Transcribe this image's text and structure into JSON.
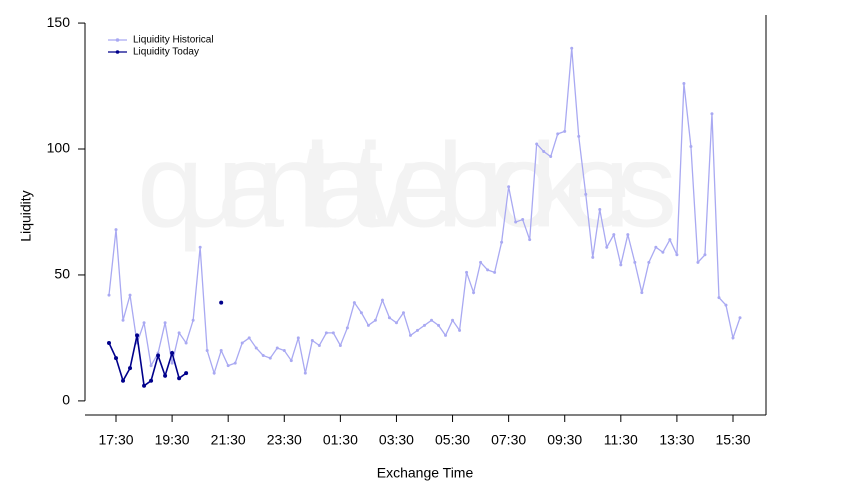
{
  "chart_data": {
    "type": "line",
    "watermark": "quantitative brokers",
    "xlabel": "Exchange Time",
    "ylabel": "Liquidity",
    "categories": [
      null,
      "17:30",
      null,
      null,
      null,
      null,
      null,
      null,
      null,
      "19:30",
      null,
      null,
      null,
      null,
      null,
      null,
      null,
      "21:30",
      null,
      null,
      null,
      null,
      null,
      null,
      null,
      "23:30",
      null,
      null,
      null,
      null,
      null,
      null,
      null,
      "01:30",
      null,
      null,
      null,
      null,
      null,
      null,
      null,
      "03:30",
      null,
      null,
      null,
      null,
      null,
      null,
      null,
      "05:30",
      null,
      null,
      null,
      null,
      null,
      null,
      null,
      "07:30",
      null,
      null,
      null,
      null,
      null,
      null,
      null,
      "09:30",
      null,
      null,
      null,
      null,
      null,
      null,
      null,
      "11:30",
      null,
      null,
      null,
      null,
      null,
      null,
      null,
      "13:30",
      null,
      null,
      null,
      null,
      null,
      null,
      null,
      "15:30",
      null
    ],
    "series": [
      {
        "name": "Liquidity Historical",
        "color": "#a9a9f2",
        "values": [
          42,
          68,
          32,
          42,
          23,
          31,
          14,
          19,
          31,
          15,
          27,
          23,
          32,
          61,
          20,
          11,
          20,
          14,
          15,
          23,
          25,
          21,
          18,
          17,
          21,
          20,
          16,
          25,
          11,
          24,
          22,
          27,
          27,
          22,
          29,
          39,
          35,
          30,
          32,
          40,
          33,
          31,
          35,
          26,
          28,
          30,
          32,
          30,
          26,
          32,
          28,
          51,
          43,
          55,
          52,
          51,
          63,
          85,
          71,
          72,
          64,
          102,
          99,
          97,
          106,
          107,
          140,
          105,
          82,
          57,
          76,
          61,
          66,
          54,
          66,
          55,
          43,
          55,
          61,
          59,
          64,
          58,
          126,
          101,
          55,
          58,
          114,
          41,
          38,
          25,
          33
        ]
      },
      {
        "name": "Liquidity Today",
        "color": "#00008b",
        "values": [
          23,
          17,
          8,
          13,
          26,
          6,
          8,
          18,
          10,
          19,
          9,
          11,
          null,
          null,
          null,
          null,
          39,
          null,
          null,
          null,
          null,
          null,
          null,
          null,
          null,
          null,
          null,
          null,
          null,
          null,
          null,
          null,
          null,
          null,
          null,
          null,
          null,
          null,
          null,
          null,
          null,
          null,
          null,
          null,
          null,
          null,
          null,
          null,
          null,
          null,
          null,
          null,
          null,
          null,
          null,
          null,
          null,
          null,
          null,
          null,
          null,
          null,
          null,
          null,
          null,
          null,
          null,
          null,
          null,
          null,
          null,
          null,
          null,
          null,
          null,
          null,
          null,
          null,
          null,
          null,
          null,
          null,
          null,
          null,
          null,
          null,
          null,
          null,
          null,
          null,
          null
        ]
      }
    ],
    "ylim": [
      -5.6,
      153.2
    ],
    "yticks": [
      0,
      50,
      100,
      150
    ],
    "legend": "top-left"
  }
}
